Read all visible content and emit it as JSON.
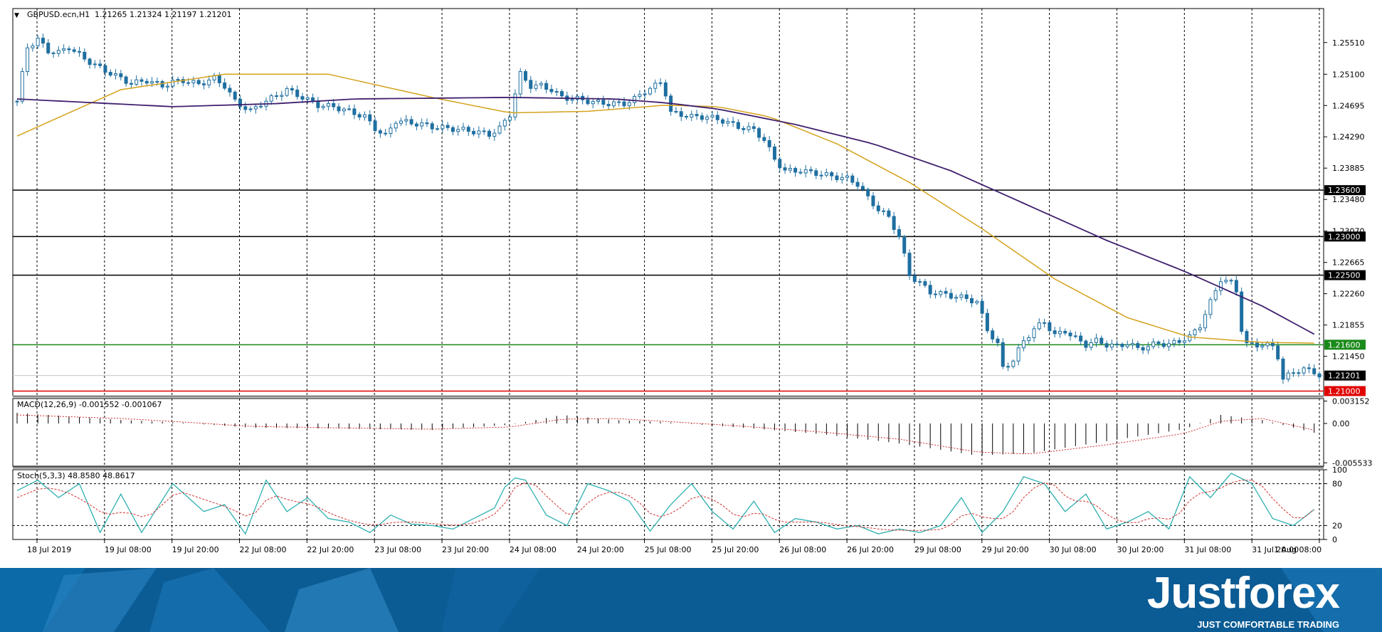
{
  "header": {
    "symbol": "GBPUSD.ecn,H1",
    "ohlc": "1.21265 1.21324 1.21197 1.21201",
    "menu_glyph": "▼"
  },
  "chart_data": {
    "type": "candlestick",
    "symbol": "GBPUSD.ecn",
    "timeframe": "H1",
    "ohlc": {
      "open": 1.21265,
      "high": 1.21324,
      "low": 1.21197,
      "close": 1.21201
    },
    "y_ticks": [
      "1.25510",
      "1.25100",
      "1.24695",
      "1.24290",
      "1.23885",
      "1.23480",
      "1.23070",
      "1.22665",
      "1.22260",
      "1.21855",
      "1.21450"
    ],
    "ylim": [
      1.2094,
      1.2595
    ],
    "x_ticks": [
      "18 Jul 2019",
      "19 Jul 08:00",
      "19 Jul 20:00",
      "22 Jul 08:00",
      "22 Jul 20:00",
      "23 Jul 08:00",
      "23 Jul 20:00",
      "24 Jul 08:00",
      "24 Jul 20:00",
      "25 Jul 08:00",
      "25 Jul 20:00",
      "26 Jul 08:00",
      "26 Jul 20:00",
      "29 Jul 08:00",
      "29 Jul 20:00",
      "30 Jul 08:00",
      "30 Jul 20:00",
      "31 Jul 08:00",
      "31 Jul 20:00",
      "1 Aug 08:00"
    ],
    "levels": [
      {
        "value": 1.236,
        "label": "1.23600",
        "color": "#000000"
      },
      {
        "value": 1.23,
        "label": "1.23000",
        "color": "#000000"
      },
      {
        "value": 1.225,
        "label": "1.22500",
        "color": "#000000"
      },
      {
        "value": 1.216,
        "label": "1.21600",
        "color": "#1a8a1a"
      },
      {
        "value": 1.21,
        "label": "1.21000",
        "color": "#e00000"
      }
    ],
    "current_price": {
      "value": 1.21201,
      "label": "1.21201"
    },
    "close_path": [
      [
        0,
        1.2475
      ],
      [
        2,
        1.2545
      ],
      [
        4,
        1.2555
      ],
      [
        6,
        1.254
      ],
      [
        8,
        1.2538
      ],
      [
        10,
        1.2545
      ],
      [
        13,
        1.253
      ],
      [
        16,
        1.2518
      ],
      [
        19,
        1.2508
      ],
      [
        22,
        1.2498
      ],
      [
        25,
        1.2502
      ],
      [
        28,
        1.2495
      ],
      [
        30,
        1.25
      ],
      [
        32,
        1.2502
      ],
      [
        35,
        1.2497
      ],
      [
        38,
        1.2505
      ],
      [
        40,
        1.2495
      ],
      [
        42,
        1.2475
      ],
      [
        45,
        1.2462
      ],
      [
        47,
        1.2472
      ],
      [
        50,
        1.2482
      ],
      [
        52,
        1.249
      ],
      [
        55,
        1.248
      ],
      [
        58,
        1.247
      ],
      [
        61,
        1.2468
      ],
      [
        64,
        1.2462
      ],
      [
        67,
        1.2455
      ],
      [
        69,
        1.244
      ],
      [
        71,
        1.243
      ],
      [
        73,
        1.245
      ],
      [
        75,
        1.2448
      ],
      [
        78,
        1.2445
      ],
      [
        80,
        1.2442
      ],
      [
        83,
        1.244
      ],
      [
        86,
        1.2438
      ],
      [
        89,
        1.2435
      ],
      [
        91,
        1.2432
      ],
      [
        93,
        1.244
      ],
      [
        95,
        1.2458
      ],
      [
        96,
        1.2485
      ],
      [
        97,
        1.251
      ],
      [
        99,
        1.2495
      ],
      [
        101,
        1.2495
      ],
      [
        103,
        1.249
      ],
      [
        105,
        1.248
      ],
      [
        108,
        1.2478
      ],
      [
        111,
        1.2474
      ],
      [
        114,
        1.2472
      ],
      [
        117,
        1.2472
      ],
      [
        119,
        1.2478
      ],
      [
        121,
        1.2488
      ],
      [
        123,
        1.2495
      ],
      [
        124,
        1.25
      ],
      [
        125,
        1.2485
      ],
      [
        126,
        1.246
      ],
      [
        128,
        1.2458
      ],
      [
        130,
        1.2455
      ],
      [
        133,
        1.2455
      ],
      [
        136,
        1.245
      ],
      [
        139,
        1.2442
      ],
      [
        142,
        1.2438
      ],
      [
        144,
        1.2425
      ],
      [
        146,
        1.24
      ],
      [
        148,
        1.2385
      ],
      [
        151,
        1.2385
      ],
      [
        154,
        1.2382
      ],
      [
        157,
        1.2378
      ],
      [
        160,
        1.2375
      ],
      [
        162,
        1.2368
      ],
      [
        164,
        1.235
      ],
      [
        166,
        1.2335
      ],
      [
        168,
        1.2325
      ],
      [
        170,
        1.23
      ],
      [
        171,
        1.2275
      ],
      [
        172,
        1.225
      ],
      [
        174,
        1.224
      ],
      [
        176,
        1.2228
      ],
      [
        179,
        1.2225
      ],
      [
        181,
        1.2222
      ],
      [
        183,
        1.222
      ],
      [
        185,
        1.2215
      ],
      [
        187,
        1.218
      ],
      [
        189,
        1.216
      ],
      [
        190,
        1.213
      ],
      [
        192,
        1.214
      ],
      [
        194,
        1.2165
      ],
      [
        196,
        1.218
      ],
      [
        198,
        1.219
      ],
      [
        200,
        1.2172
      ],
      [
        202,
        1.2178
      ],
      [
        204,
        1.2168
      ],
      [
        206,
        1.216
      ],
      [
        208,
        1.2165
      ],
      [
        210,
        1.216
      ],
      [
        212,
        1.2158
      ],
      [
        214,
        1.2162
      ],
      [
        216,
        1.2155
      ],
      [
        218,
        1.2158
      ],
      [
        220,
        1.2162
      ],
      [
        222,
        1.216
      ],
      [
        224,
        1.2165
      ],
      [
        226,
        1.217
      ],
      [
        228,
        1.2185
      ],
      [
        230,
        1.2215
      ],
      [
        232,
        1.2245
      ],
      [
        234,
        1.224
      ],
      [
        235,
        1.223
      ],
      [
        236,
        1.218
      ],
      [
        237,
        1.216
      ],
      [
        240,
        1.216
      ],
      [
        242,
        1.2158
      ],
      [
        243,
        1.2145
      ],
      [
        244,
        1.2115
      ],
      [
        246,
        1.2125
      ],
      [
        248,
        1.2128
      ],
      [
        250,
        1.2125
      ],
      [
        251,
        1.212
      ]
    ],
    "ma_fast_path": [
      [
        0,
        1.243
      ],
      [
        20,
        1.249
      ],
      [
        40,
        1.251
      ],
      [
        60,
        1.251
      ],
      [
        80,
        1.248
      ],
      [
        95,
        1.246
      ],
      [
        110,
        1.2462
      ],
      [
        125,
        1.247
      ],
      [
        135,
        1.2468
      ],
      [
        145,
        1.2455
      ],
      [
        158,
        1.242
      ],
      [
        172,
        1.237
      ],
      [
        186,
        1.231
      ],
      [
        200,
        1.2245
      ],
      [
        214,
        1.2195
      ],
      [
        226,
        1.217
      ],
      [
        240,
        1.2163
      ],
      [
        251,
        1.2162
      ]
    ],
    "ma_slow_path": [
      [
        0,
        1.2478
      ],
      [
        30,
        1.2468
      ],
      [
        50,
        1.2472
      ],
      [
        65,
        1.2478
      ],
      [
        95,
        1.248
      ],
      [
        115,
        1.2478
      ],
      [
        125,
        1.2473
      ],
      [
        135,
        1.2465
      ],
      [
        150,
        1.2445
      ],
      [
        165,
        1.242
      ],
      [
        180,
        1.2385
      ],
      [
        195,
        1.234
      ],
      [
        210,
        1.2295
      ],
      [
        225,
        1.2255
      ],
      [
        240,
        1.221
      ],
      [
        251,
        1.217
      ]
    ],
    "macd": {
      "label": "MACD(12,26,9) -0.001552 -0.001067",
      "y_ticks": [
        "0.003152",
        "0.00",
        "-0.005533"
      ],
      "ylim": [
        -0.006,
        0.0035
      ],
      "hist_path": [
        [
          0,
          0.0015
        ],
        [
          20,
          0.0005
        ],
        [
          32,
          0.0001
        ],
        [
          45,
          -0.0006
        ],
        [
          60,
          -0.0007
        ],
        [
          80,
          -0.0009
        ],
        [
          95,
          -0.0002
        ],
        [
          105,
          0.0012
        ],
        [
          115,
          0.0005
        ],
        [
          125,
          0.0002
        ],
        [
          140,
          -0.0006
        ],
        [
          155,
          -0.0015
        ],
        [
          170,
          -0.0028
        ],
        [
          185,
          -0.0045
        ],
        [
          195,
          -0.0042
        ],
        [
          210,
          -0.0025
        ],
        [
          225,
          -0.0008
        ],
        [
          232,
          0.0012
        ],
        [
          240,
          0.0005
        ],
        [
          251,
          -0.0015
        ]
      ],
      "signal_path": [
        [
          0,
          0.0012
        ],
        [
          20,
          0.0007
        ],
        [
          32,
          0.0002
        ],
        [
          45,
          -0.0004
        ],
        [
          60,
          -0.0006
        ],
        [
          80,
          -0.0008
        ],
        [
          95,
          -0.0005
        ],
        [
          105,
          0.0006
        ],
        [
          115,
          0.0007
        ],
        [
          125,
          0.0003
        ],
        [
          140,
          -0.0004
        ],
        [
          155,
          -0.0012
        ],
        [
          170,
          -0.0022
        ],
        [
          185,
          -0.004
        ],
        [
          195,
          -0.0043
        ],
        [
          210,
          -0.003
        ],
        [
          225,
          -0.0014
        ],
        [
          232,
          0.0003
        ],
        [
          240,
          0.0007
        ],
        [
          251,
          -0.0011
        ]
      ]
    },
    "stoch": {
      "label": "Stoch(5,3,3) 48.8580 48.8617",
      "y_ticks": [
        "100",
        "80",
        "20",
        "0"
      ],
      "ylim": [
        0,
        100
      ],
      "levels": [
        80,
        20
      ],
      "main_path": [
        [
          0,
          70
        ],
        [
          4,
          85
        ],
        [
          8,
          60
        ],
        [
          12,
          80
        ],
        [
          16,
          10
        ],
        [
          20,
          65
        ],
        [
          24,
          10
        ],
        [
          30,
          80
        ],
        [
          36,
          40
        ],
        [
          40,
          50
        ],
        [
          44,
          8
        ],
        [
          48,
          85
        ],
        [
          52,
          40
        ],
        [
          56,
          60
        ],
        [
          60,
          30
        ],
        [
          64,
          25
        ],
        [
          68,
          10
        ],
        [
          72,
          35
        ],
        [
          76,
          22
        ],
        [
          80,
          20
        ],
        [
          84,
          15
        ],
        [
          88,
          30
        ],
        [
          92,
          45
        ],
        [
          95,
          90
        ],
        [
          98,
          85
        ],
        [
          102,
          35
        ],
        [
          106,
          20
        ],
        [
          110,
          80
        ],
        [
          114,
          70
        ],
        [
          118,
          55
        ],
        [
          122,
          12
        ],
        [
          126,
          50
        ],
        [
          130,
          80
        ],
        [
          134,
          40
        ],
        [
          138,
          15
        ],
        [
          142,
          55
        ],
        [
          146,
          10
        ],
        [
          150,
          30
        ],
        [
          154,
          25
        ],
        [
          158,
          15
        ],
        [
          162,
          20
        ],
        [
          166,
          8
        ],
        [
          170,
          15
        ],
        [
          174,
          10
        ],
        [
          178,
          20
        ],
        [
          182,
          60
        ],
        [
          186,
          10
        ],
        [
          190,
          40
        ],
        [
          194,
          90
        ],
        [
          198,
          80
        ],
        [
          202,
          40
        ],
        [
          206,
          65
        ],
        [
          210,
          15
        ],
        [
          214,
          25
        ],
        [
          218,
          40
        ],
        [
          222,
          15
        ],
        [
          226,
          90
        ],
        [
          230,
          60
        ],
        [
          234,
          95
        ],
        [
          238,
          80
        ],
        [
          242,
          30
        ],
        [
          246,
          20
        ],
        [
          251,
          48.858
        ]
      ],
      "signal_path": [
        [
          0,
          60
        ],
        [
          5,
          75
        ],
        [
          9,
          70
        ],
        [
          13,
          55
        ],
        [
          17,
          35
        ],
        [
          21,
          40
        ],
        [
          25,
          30
        ],
        [
          31,
          70
        ],
        [
          37,
          55
        ],
        [
          41,
          45
        ],
        [
          45,
          30
        ],
        [
          49,
          65
        ],
        [
          53,
          55
        ],
        [
          57,
          50
        ],
        [
          61,
          35
        ],
        [
          65,
          25
        ],
        [
          69,
          20
        ],
        [
          73,
          25
        ],
        [
          77,
          25
        ],
        [
          81,
          22
        ],
        [
          85,
          20
        ],
        [
          89,
          25
        ],
        [
          93,
          40
        ],
        [
          96,
          75
        ],
        [
          99,
          85
        ],
        [
          103,
          55
        ],
        [
          107,
          30
        ],
        [
          111,
          60
        ],
        [
          115,
          70
        ],
        [
          119,
          60
        ],
        [
          123,
          30
        ],
        [
          127,
          40
        ],
        [
          131,
          65
        ],
        [
          135,
          55
        ],
        [
          139,
          30
        ],
        [
          143,
          40
        ],
        [
          147,
          25
        ],
        [
          151,
          25
        ],
        [
          155,
          25
        ],
        [
          159,
          20
        ],
        [
          163,
          18
        ],
        [
          167,
          14
        ],
        [
          171,
          13
        ],
        [
          175,
          13
        ],
        [
          179,
          15
        ],
        [
          183,
          40
        ],
        [
          187,
          30
        ],
        [
          191,
          30
        ],
        [
          195,
          70
        ],
        [
          199,
          85
        ],
        [
          203,
          55
        ],
        [
          207,
          55
        ],
        [
          211,
          30
        ],
        [
          215,
          22
        ],
        [
          219,
          32
        ],
        [
          223,
          28
        ],
        [
          227,
          65
        ],
        [
          231,
          70
        ],
        [
          235,
          85
        ],
        [
          239,
          85
        ],
        [
          243,
          50
        ],
        [
          247,
          25
        ],
        [
          251,
          48.862
        ]
      ]
    },
    "colors": {
      "bull": "#1f6fa0",
      "bear": "#1f6fa0",
      "ma_fast": "#d4a21c",
      "ma_slow": "#3f1f6e",
      "stoch_main": "#2fb0b0",
      "stoch_signal": "#d03030",
      "macd_hist": "#000000",
      "macd_signal": "#d03030"
    }
  },
  "footer": {
    "brand": "Justforex",
    "tagline": "JUST COMFORTABLE TRADING"
  }
}
